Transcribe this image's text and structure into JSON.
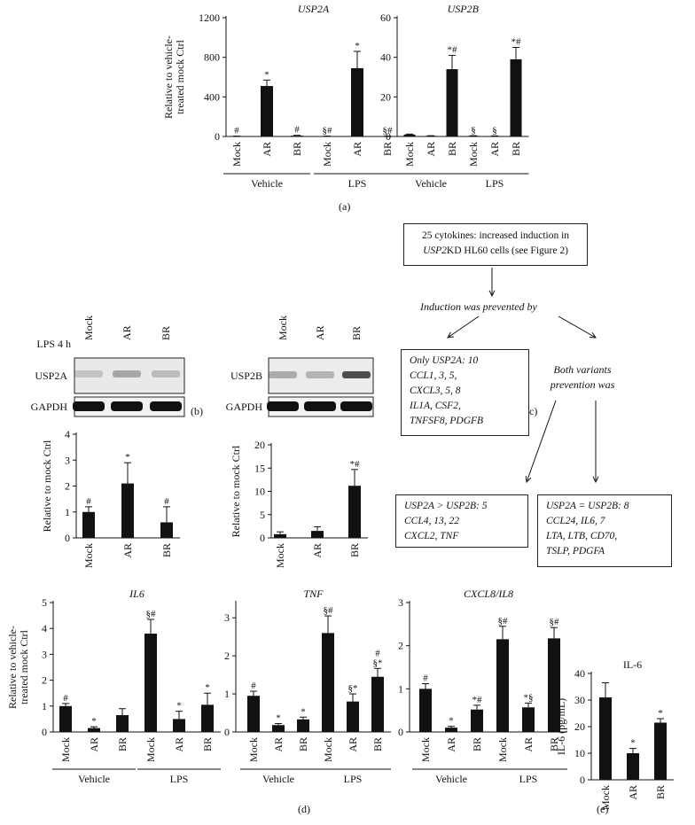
{
  "panel_labels": {
    "a": "(a)",
    "b": "(b)",
    "c": "(c)",
    "d": "(d)",
    "e": "(e)"
  },
  "chart_data": [
    {
      "id": "a1",
      "type": "bar",
      "title": "USP2A",
      "title_italic": true,
      "ylabel": "Relative to vehicle-treated mock Ctrl",
      "ylim": [
        0,
        1200
      ],
      "yticks": [
        0,
        400,
        800,
        1200
      ],
      "categories": [
        "Mock",
        "AR",
        "BR",
        "Mock",
        "AR",
        "BR"
      ],
      "values": [
        3,
        510,
        8,
        3,
        690,
        3
      ],
      "errors": [
        1,
        60,
        4,
        1,
        170,
        1
      ],
      "markers": [
        "#",
        "*",
        "#",
        "§#",
        "*",
        "§#"
      ],
      "groups": [
        {
          "label": "Vehicle",
          "span": [
            0,
            2
          ]
        },
        {
          "label": "LPS",
          "span": [
            3,
            5
          ]
        }
      ]
    },
    {
      "id": "a2",
      "type": "bar",
      "title": "USP2B",
      "title_italic": true,
      "ylabel": "",
      "ylim": [
        0,
        60
      ],
      "yticks": [
        0,
        20,
        40,
        60
      ],
      "categories": [
        "Mock",
        "AR",
        "BR",
        "Mock",
        "AR",
        "BR"
      ],
      "values": [
        1,
        0.3,
        34,
        0.3,
        0.2,
        39
      ],
      "errors": [
        0.2,
        0.1,
        7,
        0.1,
        0.1,
        6
      ],
      "markers": [
        "",
        "",
        "*#",
        "§",
        "§",
        "*#"
      ],
      "groups": [
        {
          "label": "Vehicle",
          "span": [
            0,
            2
          ]
        },
        {
          "label": "LPS",
          "span": [
            3,
            5
          ]
        }
      ]
    },
    {
      "id": "b1",
      "type": "bar",
      "title": "",
      "ylabel": "Relative to mock Ctrl",
      "ylim": [
        0,
        4
      ],
      "yticks": [
        0,
        1,
        2,
        3,
        4
      ],
      "categories": [
        "Mock",
        "AR",
        "BR"
      ],
      "values": [
        1.0,
        2.1,
        0.6
      ],
      "errors": [
        0.2,
        0.8,
        0.6
      ],
      "markers": [
        "#",
        "*",
        "#"
      ],
      "groups": []
    },
    {
      "id": "b2",
      "type": "bar",
      "title": "",
      "ylabel": "Relative to mock Ctrl",
      "ylim": [
        0,
        20
      ],
      "yticks": [
        0,
        5,
        10,
        15,
        20
      ],
      "categories": [
        "Mock",
        "AR",
        "BR"
      ],
      "values": [
        0.8,
        1.5,
        11.2
      ],
      "errors": [
        0.5,
        0.9,
        3.5
      ],
      "markers": [
        "",
        "",
        "*#"
      ],
      "groups": []
    },
    {
      "id": "d1",
      "type": "bar",
      "title": "IL6",
      "title_italic": true,
      "ylabel": "Relative to vehicle-treated mock Ctrl",
      "ylim": [
        0,
        5
      ],
      "yticks": [
        0,
        1,
        2,
        3,
        4,
        5
      ],
      "categories": [
        "Mock",
        "AR",
        "BR",
        "Mock",
        "AR",
        "BR"
      ],
      "values": [
        1.0,
        0.15,
        0.65,
        3.8,
        0.5,
        1.05
      ],
      "errors": [
        0.1,
        0.05,
        0.25,
        0.55,
        0.3,
        0.45
      ],
      "markers": [
        "#",
        "*",
        "",
        "§#",
        "*",
        "*"
      ],
      "groups": [
        {
          "label": "Vehicle",
          "span": [
            0,
            2
          ]
        },
        {
          "label": "LPS",
          "span": [
            3,
            5
          ]
        }
      ]
    },
    {
      "id": "d2",
      "type": "bar",
      "title": "TNF",
      "title_italic": true,
      "ylabel": "",
      "ylim": [
        0,
        3.4
      ],
      "yticks": [
        0,
        1,
        2,
        3
      ],
      "categories": [
        "Mock",
        "AR",
        "BR",
        "Mock",
        "AR",
        "BR"
      ],
      "values": [
        0.95,
        0.18,
        0.33,
        2.6,
        0.8,
        1.45
      ],
      "errors": [
        0.12,
        0.04,
        0.06,
        0.45,
        0.2,
        0.22
      ],
      "markers": [
        "#",
        "*",
        "*",
        "§#",
        "§*",
        "#\n§*"
      ],
      "groups": [
        {
          "label": "Vehicle",
          "span": [
            0,
            2
          ]
        },
        {
          "label": "LPS",
          "span": [
            3,
            5
          ]
        }
      ]
    },
    {
      "id": "d3",
      "type": "bar",
      "title": "CXCL8/IL8",
      "title_italic": true,
      "ylabel": "",
      "ylim": [
        0,
        3
      ],
      "yticks": [
        0,
        1,
        2,
        3
      ],
      "categories": [
        "Mock",
        "AR",
        "BR",
        "Mock",
        "AR",
        "BR"
      ],
      "values": [
        1.0,
        0.1,
        0.52,
        2.15,
        0.57,
        2.17
      ],
      "errors": [
        0.12,
        0.03,
        0.1,
        0.3,
        0.1,
        0.25
      ],
      "markers": [
        "#",
        "*",
        "*#",
        "§#",
        "*§",
        "§#"
      ],
      "groups": [
        {
          "label": "Vehicle",
          "span": [
            0,
            2
          ]
        },
        {
          "label": "LPS",
          "span": [
            3,
            5
          ]
        }
      ]
    },
    {
      "id": "e1",
      "type": "bar",
      "title": "IL-6",
      "title_italic": false,
      "ylabel": "IL-6 (pg/mL)",
      "ylim": [
        0,
        40
      ],
      "yticks": [
        0,
        10,
        20,
        30,
        40
      ],
      "categories": [
        "Mock",
        "AR",
        "BR"
      ],
      "values": [
        31,
        10,
        21.5
      ],
      "errors": [
        5.5,
        1.8,
        1.5
      ],
      "markers": [
        "",
        "*",
        "*"
      ],
      "groups": []
    }
  ],
  "blots": {
    "treatment_label": "LPS 4 h",
    "lanes": [
      "Mock",
      "AR",
      "BR"
    ],
    "left_rows": [
      "USP2A",
      "GAPDH"
    ],
    "right_rows": [
      "USP2B",
      "GAPDH"
    ]
  },
  "flow": {
    "top_line1": "25 cytokines: increased induction in",
    "top_line2_gene": "USP2",
    "top_line2_rest": "KD HL60 cells (see Figure 2)",
    "prevented": "Induction was prevented by",
    "both_line1": "Both variants",
    "both_line2": "prevention was",
    "only_usp2a": [
      "Only USP2A: 10",
      "CCL1, 3, 5,",
      "CXCL3, 5, 8",
      "IL1A, CSF2,",
      "TNFSF8, PDGFB"
    ],
    "gt_box": [
      "USP2A > USP2B: 5",
      "CCL4, 13, 22",
      "CXCL2, TNF"
    ],
    "eq_box": [
      "USP2A = USP2B: 8",
      "CCL24, IL6, 7",
      "LTA, LTB, CD70,",
      "TSLP, PDGFA"
    ]
  }
}
